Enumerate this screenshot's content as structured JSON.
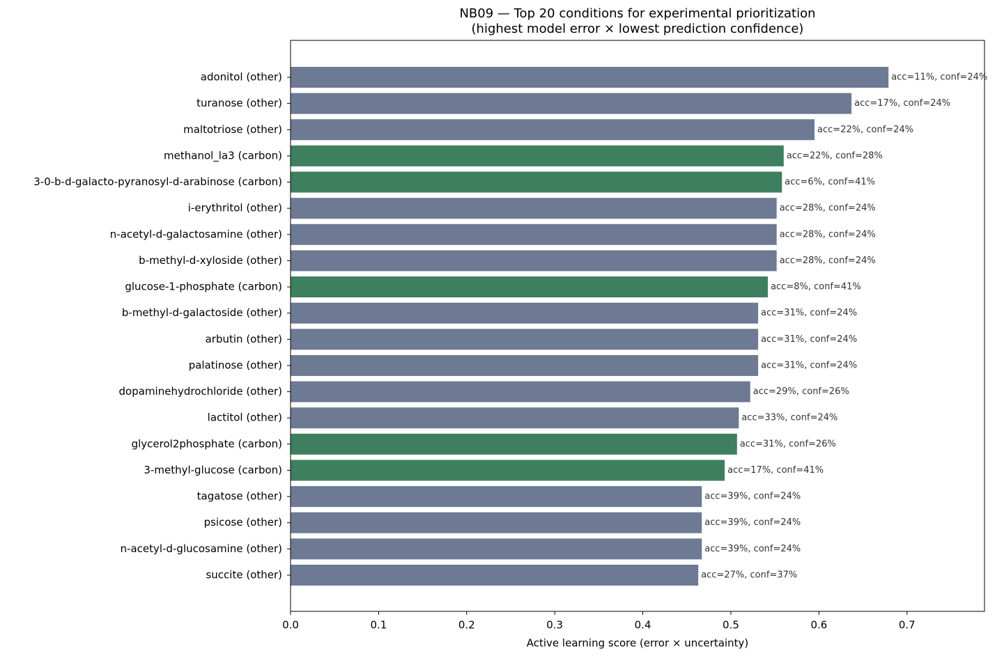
{
  "chart_data": {
    "type": "barh",
    "title": "NB09 — Top 20 conditions for experimental prioritization",
    "subtitle": "(highest model error × lowest prediction confidence)",
    "x_label": "Active learning score (error × uncertainty)",
    "categories": [
      "adonitol (other)",
      "turanose (other)",
      "maltotriose (other)",
      "methanol_la3 (carbon)",
      "3-0-b-d-galacto-pyranosyl-d-arabinose (carbon)",
      "i-erythritol (other)",
      "n-acetyl-d-galactosamine (other)",
      "b-methyl-d-xyloside (other)",
      "glucose-1-phosphate (carbon)",
      "b-methyl-d-galactoside (other)",
      "arbutin (other)",
      "palatinose (other)",
      "dopaminehydrochloride (other)",
      "lactitol (other)",
      "glycerol2phosphate (carbon)",
      "3-methyl-glucose (carbon)",
      "tagatose (other)",
      "psicose (other)",
      "n-acetyl-d-glucosamine (other)",
      "succite (other)"
    ],
    "values": [
      0.679,
      0.637,
      0.595,
      0.56,
      0.558,
      0.552,
      0.552,
      0.552,
      0.542,
      0.531,
      0.531,
      0.531,
      0.522,
      0.509,
      0.507,
      0.493,
      0.467,
      0.467,
      0.467,
      0.463
    ],
    "bar_labels": [
      "acc=11%, conf=24%",
      "acc=17%, conf=24%",
      "acc=22%, conf=24%",
      "acc=22%, conf=28%",
      "acc=6%, conf=41%",
      "acc=28%, conf=24%",
      "acc=28%, conf=24%",
      "acc=28%, conf=24%",
      "acc=8%, conf=41%",
      "acc=31%, conf=24%",
      "acc=31%, conf=24%",
      "acc=31%, conf=24%",
      "acc=29%, conf=26%",
      "acc=33%, conf=24%",
      "acc=31%, conf=26%",
      "acc=17%, conf=41%",
      "acc=39%, conf=24%",
      "acc=39%, conf=24%",
      "acc=39%, conf=24%",
      "acc=27%, conf=37%"
    ],
    "colors": [
      "#6e7a94",
      "#6e7a94",
      "#6e7a94",
      "#3d7f5e",
      "#3d7f5e",
      "#6e7a94",
      "#6e7a94",
      "#6e7a94",
      "#3d7f5e",
      "#6e7a94",
      "#6e7a94",
      "#6e7a94",
      "#6e7a94",
      "#6e7a94",
      "#3d7f5e",
      "#3d7f5e",
      "#6e7a94",
      "#6e7a94",
      "#6e7a94",
      "#6e7a94"
    ],
    "xlim": [
      0,
      0.788
    ],
    "xticks": [
      {
        "value": 0,
        "label": "0.0"
      },
      0.1,
      0.2,
      0.3,
      0.4,
      0.5,
      0.6,
      0.7
    ]
  }
}
